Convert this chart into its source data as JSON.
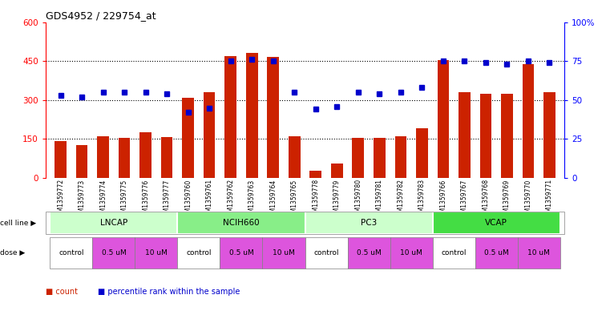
{
  "title": "GDS4952 / 229754_at",
  "samples": [
    "GSM1359772",
    "GSM1359773",
    "GSM1359774",
    "GSM1359775",
    "GSM1359776",
    "GSM1359777",
    "GSM1359760",
    "GSM1359761",
    "GSM1359762",
    "GSM1359763",
    "GSM1359764",
    "GSM1359765",
    "GSM1359778",
    "GSM1359779",
    "GSM1359780",
    "GSM1359781",
    "GSM1359782",
    "GSM1359783",
    "GSM1359766",
    "GSM1359767",
    "GSM1359768",
    "GSM1359769",
    "GSM1359770",
    "GSM1359771"
  ],
  "counts": [
    142,
    128,
    160,
    153,
    175,
    158,
    310,
    330,
    470,
    480,
    465,
    160,
    28,
    55,
    155,
    155,
    162,
    190,
    455,
    330,
    325,
    325,
    438,
    330
  ],
  "percentiles": [
    53,
    52,
    55,
    55,
    55,
    54,
    42,
    45,
    75,
    76,
    75,
    55,
    44,
    46,
    55,
    54,
    55,
    58,
    75,
    75,
    74,
    73,
    75,
    74
  ],
  "cell_lines": [
    {
      "label": "LNCAP",
      "start": 0,
      "end": 6,
      "color": "#ccffcc"
    },
    {
      "label": "NCIH660",
      "start": 6,
      "end": 12,
      "color": "#88ee88"
    },
    {
      "label": "PC3",
      "start": 12,
      "end": 18,
      "color": "#ccffcc"
    },
    {
      "label": "VCAP",
      "start": 18,
      "end": 24,
      "color": "#44dd44"
    }
  ],
  "dose_groups": [
    {
      "label": "control",
      "start": 0,
      "end": 2,
      "color": "#ffffff"
    },
    {
      "label": "0.5 uM",
      "start": 2,
      "end": 4,
      "color": "#ee66ee"
    },
    {
      "label": "10 uM",
      "start": 4,
      "end": 6,
      "color": "#ee66ee"
    },
    {
      "label": "control",
      "start": 6,
      "end": 8,
      "color": "#ffffff"
    },
    {
      "label": "0.5 uM",
      "start": 8,
      "end": 10,
      "color": "#ee66ee"
    },
    {
      "label": "10 uM",
      "start": 10,
      "end": 12,
      "color": "#ee66ee"
    },
    {
      "label": "control",
      "start": 12,
      "end": 14,
      "color": "#ffffff"
    },
    {
      "label": "0.5 uM",
      "start": 14,
      "end": 16,
      "color": "#ee66ee"
    },
    {
      "label": "10 uM",
      "start": 16,
      "end": 18,
      "color": "#ee66ee"
    },
    {
      "label": "control",
      "start": 18,
      "end": 20,
      "color": "#ffffff"
    },
    {
      "label": "0.5 uM",
      "start": 20,
      "end": 22,
      "color": "#ee66ee"
    },
    {
      "label": "10 uM",
      "start": 22,
      "end": 24,
      "color": "#ee66ee"
    }
  ],
  "bar_color": "#cc2200",
  "dot_color": "#0000cc",
  "ylim_left": [
    0,
    600
  ],
  "ylim_right": [
    0,
    100
  ],
  "yticks_left": [
    0,
    150,
    300,
    450,
    600
  ],
  "yticks_right": [
    0,
    25,
    50,
    75,
    100
  ],
  "ytick_labels_left": [
    "0",
    "150",
    "300",
    "450",
    "600"
  ],
  "ytick_labels_right": [
    "0",
    "25",
    "50",
    "75",
    "100%"
  ],
  "hlines": [
    150,
    300,
    450
  ],
  "bg_color": "#ffffff"
}
